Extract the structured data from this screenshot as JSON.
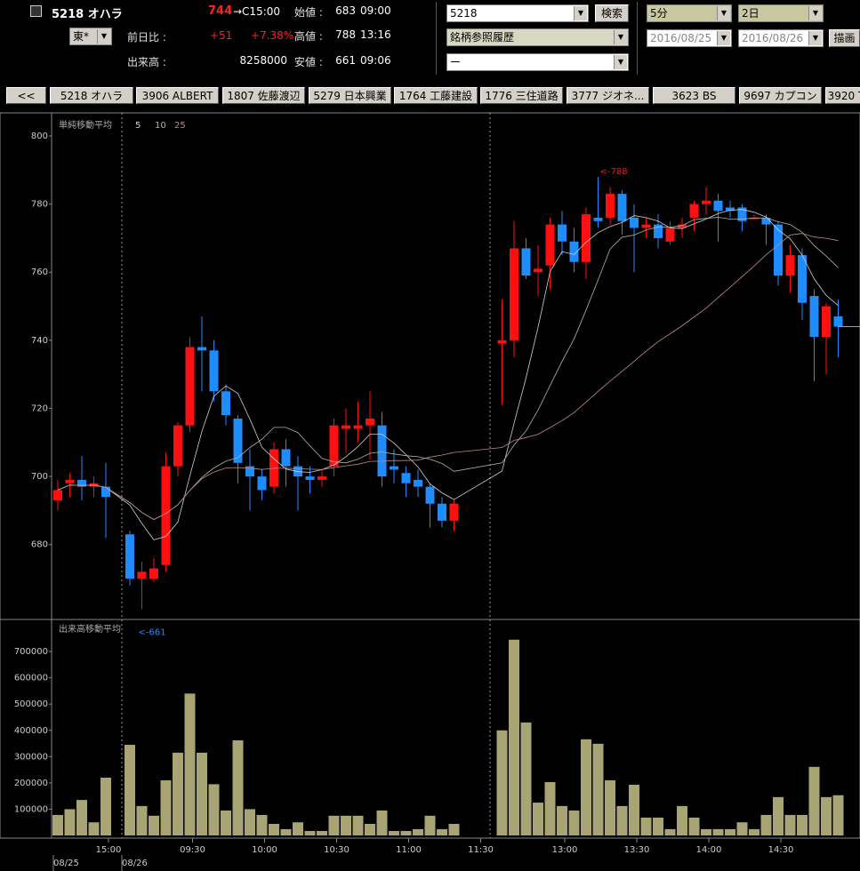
{
  "header": {
    "code_name": "5218 オハラ",
    "price": "744",
    "close_time": "→C15:00",
    "market": "東*",
    "change_label": "前日比 :",
    "change": "+51",
    "change_pct": "+7.38%",
    "volume_label": "出来高 :",
    "volume": "8258000",
    "open_label": "始値 :",
    "open": "683",
    "open_time": "09:00",
    "high_label": "高値 :",
    "high": "788",
    "high_time": "13:16",
    "low_label": "安値 :",
    "low": "661",
    "low_time": "09:06"
  },
  "controls": {
    "search_input": "5218",
    "search_button": "検索",
    "history_select": "銘柄参照履歴",
    "sub_select": "ー",
    "interval_select": "5分",
    "span_select": "2日",
    "date_from": "2016/08/25",
    "date_to": "2016/08/26",
    "draw_button": "描画"
  },
  "tabs": [
    "<<",
    "5218 オハラ",
    "3906 ALBERT",
    "1807 佐藤渡辺",
    "5279 日本興業",
    "1764 工藤建設",
    "1776 三住道路",
    "3777 ジオネ...",
    "3623 BS",
    "9697 カプコン",
    "3920 T"
  ],
  "chart_data": [
    {
      "type": "candlestick",
      "title": "単純移動平均",
      "ma_periods": [
        5,
        10,
        25
      ],
      "ma_colors": [
        "#d0d0d0",
        "#a8b8a8",
        "#c08888"
      ],
      "up_color": "#ff1010",
      "down_color": "#1e8cff",
      "categories": [
        null,
        null,
        null,
        null,
        "15:00",
        null,
        null,
        null,
        null,
        null,
        null,
        "09:30",
        null,
        null,
        null,
        null,
        null,
        "10:00",
        null,
        null,
        null,
        null,
        null,
        "10:30",
        null,
        null,
        null,
        null,
        null,
        "11:00",
        null,
        null,
        null,
        null,
        null,
        "11:30",
        null,
        null,
        null,
        null,
        null,
        null,
        "13:00",
        null,
        null,
        null,
        null,
        null,
        "13:30",
        null,
        null,
        null,
        null,
        null,
        "14:00",
        null,
        null,
        null,
        null,
        null,
        "14:30",
        null,
        null,
        null,
        null,
        null
      ],
      "dates": [
        "08/25",
        "08/26"
      ],
      "open": [
        693,
        698,
        699,
        697,
        697,
        null,
        683,
        670,
        670,
        674,
        703,
        715,
        738,
        737,
        725,
        717,
        703,
        700,
        697,
        708,
        703,
        700,
        699,
        703,
        714,
        714,
        715,
        715,
        703,
        701,
        699,
        697,
        692,
        687,
        null,
        null,
        null,
        739,
        740,
        767,
        760,
        762,
        774,
        769,
        763,
        776,
        776,
        783,
        776,
        773,
        774,
        769,
        773,
        776,
        780,
        781,
        779,
        779,
        776,
        776,
        774,
        759,
        765,
        753,
        741,
        747
      ],
      "high": [
        699,
        701,
        706,
        700,
        704,
        null,
        684,
        675,
        676,
        707,
        716,
        741,
        747,
        740,
        727,
        718,
        708,
        702,
        710,
        711,
        706,
        703,
        702,
        717,
        720,
        722,
        725,
        719,
        708,
        703,
        702,
        698,
        694,
        693,
        null,
        null,
        null,
        752,
        775,
        770,
        768,
        776,
        778,
        773,
        779,
        788,
        785,
        784,
        780,
        776,
        777,
        775,
        776,
        781,
        785,
        783,
        781,
        780,
        777,
        777,
        775,
        768,
        767,
        755,
        751,
        752
      ],
      "low": [
        690,
        694,
        693,
        694,
        682,
        null,
        668,
        661,
        669,
        672,
        700,
        713,
        725,
        722,
        715,
        698,
        690,
        693,
        695,
        697,
        690,
        695,
        697,
        700,
        707,
        710,
        705,
        697,
        698,
        694,
        694,
        685,
        685,
        684,
        null,
        null,
        null,
        721,
        735,
        758,
        753,
        755,
        765,
        760,
        758,
        773,
        774,
        771,
        760,
        770,
        767,
        768,
        770,
        772,
        777,
        769,
        776,
        772,
        776,
        768,
        756,
        754,
        746,
        728,
        730,
        735
      ],
      "close": [
        696,
        699,
        697,
        698,
        694,
        null,
        670,
        672,
        673,
        703,
        715,
        738,
        737,
        725,
        718,
        704,
        700,
        696,
        708,
        703,
        700,
        699,
        700,
        715,
        715,
        715,
        717,
        700,
        702,
        698,
        697,
        692,
        687,
        692,
        null,
        null,
        null,
        740,
        767,
        759,
        761,
        774,
        769,
        763,
        777,
        775,
        783,
        775,
        773,
        774,
        770,
        773,
        774,
        780,
        781,
        778,
        778,
        775,
        776,
        774,
        759,
        765,
        751,
        741,
        750,
        744
      ],
      "annotations": [
        "<-788",
        "<-661"
      ],
      "ylim": [
        658,
        806
      ],
      "yticks": [
        680,
        700,
        720,
        740,
        760,
        780,
        800
      ]
    },
    {
      "type": "bar",
      "title": "出来高移動平均",
      "color": "#a8a474",
      "values": [
        78000,
        100000,
        135000,
        50000,
        220000,
        null,
        345000,
        112000,
        75000,
        210000,
        315000,
        540000,
        315000,
        195000,
        95000,
        362000,
        100000,
        78000,
        44000,
        24000,
        50000,
        17000,
        17000,
        75000,
        75000,
        75000,
        44000,
        95000,
        17000,
        17000,
        24000,
        75000,
        24000,
        44000,
        null,
        null,
        null,
        400000,
        745000,
        430000,
        125000,
        203000,
        112000,
        95000,
        366000,
        349000,
        210000,
        112000,
        193000,
        68000,
        68000,
        24000,
        112000,
        68000,
        24000,
        24000,
        24000,
        50000,
        24000,
        78000,
        146000,
        78000,
        78000,
        261000,
        146000,
        153000
      ],
      "ylim": [
        0,
        822000
      ],
      "yticks": [
        100000,
        200000,
        300000,
        400000,
        500000,
        600000,
        700000
      ]
    }
  ]
}
